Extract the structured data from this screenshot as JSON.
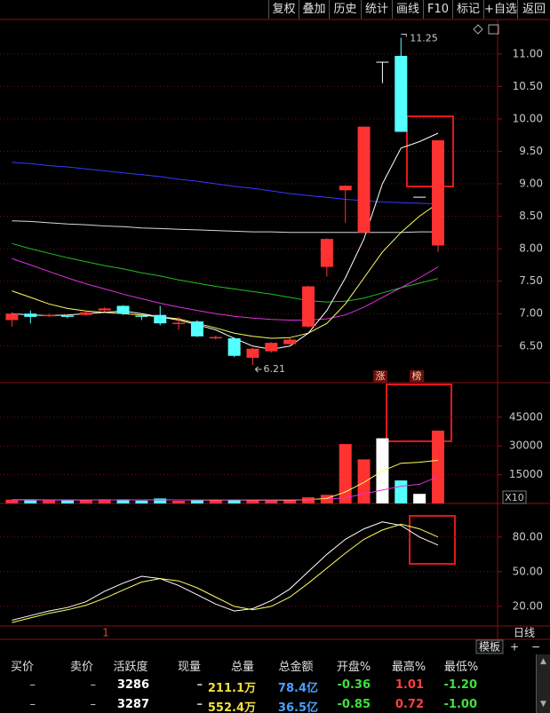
{
  "toolbar": [
    "复权",
    "叠加",
    "历史",
    "统计",
    "画线",
    "F10",
    "标记",
    "+自选",
    "返回"
  ],
  "chart_data": [
    {
      "type": "candlestick",
      "open": [
        6.9,
        7.0,
        6.96,
        6.97,
        6.98,
        7.05,
        7.12,
        6.97,
        6.98,
        6.84,
        6.88,
        6.62,
        6.62,
        6.32,
        6.42,
        6.53,
        6.8,
        7.72,
        8.9,
        8.25,
        10.88,
        10.97,
        8.8,
        8.05
      ],
      "high": [
        7.02,
        7.05,
        7.0,
        6.98,
        7.03,
        7.1,
        7.13,
        6.98,
        7.12,
        6.95,
        6.9,
        6.66,
        6.63,
        6.47,
        6.56,
        6.62,
        7.43,
        8.16,
        8.98,
        9.88,
        10.88,
        11.25,
        8.8,
        9.67
      ],
      "low": [
        6.8,
        6.85,
        6.95,
        6.93,
        6.97,
        7.03,
        6.98,
        6.9,
        6.82,
        6.75,
        6.64,
        6.6,
        6.33,
        6.21,
        6.4,
        6.52,
        6.78,
        7.57,
        8.4,
        8.25,
        10.55,
        9.8,
        8.8,
        7.95
      ],
      "close": [
        7.0,
        6.95,
        6.98,
        6.95,
        7.02,
        7.08,
        7.0,
        6.95,
        6.85,
        6.86,
        6.65,
        6.64,
        6.35,
        6.46,
        6.55,
        6.6,
        7.42,
        8.15,
        8.97,
        9.88,
        10.88,
        9.8,
        8.8,
        9.67
      ],
      "up_color": "#ff3232",
      "down_color": "#54ffff",
      "flat_color": "#ffffff",
      "high_label": "11.25",
      "low_label": "6.21",
      "series": [
        {
          "color": "#3838ff",
          "values": [
            9.33,
            9.31,
            9.28,
            9.26,
            9.23,
            9.2,
            9.17,
            9.14,
            9.11,
            9.07,
            9.04,
            9.0,
            8.96,
            8.93,
            8.89,
            8.85,
            8.82,
            8.79,
            8.76,
            8.74,
            8.72,
            8.71,
            8.7,
            8.69
          ]
        },
        {
          "color": "#d8d8d8",
          "values": [
            8.43,
            8.42,
            8.4,
            8.38,
            8.37,
            8.35,
            8.34,
            8.32,
            8.31,
            8.3,
            8.29,
            8.28,
            8.27,
            8.26,
            8.26,
            8.25,
            8.25,
            8.25,
            8.25,
            8.25,
            8.25,
            8.25,
            8.26,
            8.26
          ]
        },
        {
          "color": "#20c020",
          "values": [
            8.08,
            8.0,
            7.93,
            7.86,
            7.8,
            7.74,
            7.69,
            7.63,
            7.58,
            7.52,
            7.47,
            7.42,
            7.38,
            7.34,
            7.3,
            7.25,
            7.2,
            7.18,
            7.19,
            7.24,
            7.32,
            7.4,
            7.47,
            7.54
          ]
        },
        {
          "color": "#e030e0",
          "values": [
            7.85,
            7.75,
            7.65,
            7.55,
            7.46,
            7.38,
            7.3,
            7.23,
            7.16,
            7.1,
            7.05,
            7.0,
            6.96,
            6.93,
            6.91,
            6.9,
            6.9,
            6.92,
            6.98,
            7.1,
            7.25,
            7.4,
            7.55,
            7.72
          ]
        },
        {
          "color": "#ffff60",
          "values": [
            7.35,
            7.25,
            7.15,
            7.08,
            7.04,
            7.02,
            7.0,
            6.98,
            6.95,
            6.92,
            6.85,
            6.78,
            6.7,
            6.65,
            6.62,
            6.63,
            6.7,
            6.85,
            7.15,
            7.55,
            7.95,
            8.25,
            8.5,
            8.7
          ]
        },
        {
          "color": "#ffffff",
          "values": [
            7.0,
            6.98,
            6.97,
            6.98,
            7.0,
            7.02,
            7.04,
            7.0,
            6.95,
            6.9,
            6.83,
            6.75,
            6.62,
            6.5,
            6.45,
            6.5,
            6.7,
            7.05,
            7.55,
            8.15,
            9.0,
            9.55,
            9.65,
            9.78
          ]
        }
      ],
      "ylim": [
        5.95,
        11.53
      ],
      "yticks": [
        {
          "value": 11,
          "label": "11.00"
        },
        {
          "value": 10.5,
          "label": "10.50"
        },
        {
          "value": 10,
          "label": "10.00"
        },
        {
          "value": 9.5,
          "label": "9.50"
        },
        {
          "value": 9,
          "label": "9.00"
        },
        {
          "value": 8.5,
          "label": "8.50"
        },
        {
          "value": 8,
          "label": "8.00"
        },
        {
          "value": 7.5,
          "label": "7.50"
        },
        {
          "value": 7,
          "label": "7.00"
        },
        {
          "value": 6.5,
          "label": "6.50"
        }
      ],
      "grid": true
    },
    {
      "type": "bar",
      "values": [
        2000,
        1800,
        1700,
        1600,
        1900,
        2200,
        1700,
        1500,
        2600,
        1400,
        1600,
        1800,
        2000,
        1700,
        1500,
        1600,
        3200,
        4500,
        31000,
        23000,
        34000,
        12000,
        5000,
        38000
      ],
      "series": [
        {
          "color": "#ffff60",
          "values": [
            1900,
            1900,
            1850,
            1800,
            1800,
            1850,
            1900,
            1850,
            1900,
            1850,
            1800,
            1750,
            1800,
            1750,
            1700,
            1650,
            2000,
            2600,
            6000,
            11000,
            17000,
            21000,
            21500,
            22500
          ]
        },
        {
          "color": "#e030e0",
          "values": [
            1800,
            1800,
            1800,
            1800,
            1850,
            1850,
            1850,
            1850,
            1850,
            1850,
            1850,
            1850,
            1850,
            1850,
            1850,
            1850,
            2000,
            2200,
            3000,
            5000,
            7000,
            9000,
            10000,
            14000
          ]
        }
      ],
      "tags": [
        "涨",
        "榜"
      ],
      "scale_label": "X10",
      "ylim": [
        0,
        63000
      ],
      "yticks": [
        45000,
        30000,
        15000
      ],
      "grid": true
    },
    {
      "type": "line",
      "series": [
        {
          "color": "#ffffff",
          "values": [
            8,
            12,
            16,
            19,
            24,
            33,
            40,
            46,
            44,
            38,
            30,
            22,
            16,
            18,
            25,
            35,
            50,
            65,
            78,
            87,
            93,
            90,
            80,
            73
          ]
        },
        {
          "color": "#ffff60",
          "values": [
            6,
            10,
            14,
            17,
            21,
            27,
            34,
            41,
            44,
            42,
            36,
            28,
            20,
            17,
            20,
            28,
            40,
            53,
            66,
            78,
            86,
            91,
            87,
            80
          ]
        }
      ],
      "ylim": [
        3,
        109
      ],
      "yticks": [
        {
          "value": 80,
          "label": "80.00"
        },
        {
          "value": 50,
          "label": "50.00"
        },
        {
          "value": 20,
          "label": "20.00"
        }
      ],
      "grid": true
    }
  ],
  "x_axis_label": "1",
  "period": "日线",
  "template": "模板",
  "zoom_in": "+",
  "zoom_out": "−",
  "footer": {
    "headers": [
      "买价",
      "卖价",
      "活跃度",
      "现量",
      "总量",
      "总金额",
      "开盘%",
      "最高%",
      "最低%"
    ],
    "rows": [
      [
        "–",
        "–",
        "3286",
        "–",
        "211.1万",
        "78.4亿",
        "-0.36",
        "1.01",
        "-1.20"
      ],
      [
        "–",
        "–",
        "3287",
        "–",
        "552.4万",
        "36.5亿",
        "-0.85",
        "0.72",
        "-1.00"
      ]
    ]
  }
}
